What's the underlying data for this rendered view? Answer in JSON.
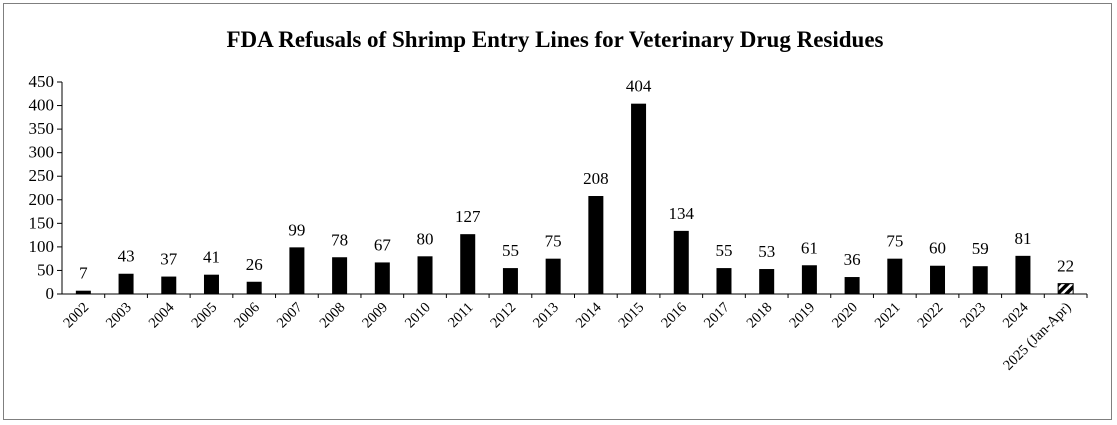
{
  "chart_data": {
    "type": "bar",
    "title": "FDA Refusals of Shrimp  Entry  Lines for Veterinary  Drug  Residues",
    "xlabel": "",
    "ylabel": "",
    "ylim": [
      0,
      450
    ],
    "yticks": [
      0,
      50,
      100,
      150,
      200,
      250,
      300,
      350,
      400,
      450
    ],
    "grid": false,
    "legend": "none",
    "bar_color": "#000000",
    "categories": [
      "2002",
      "2003",
      "2004",
      "2005",
      "2006",
      "2007",
      "2008",
      "2009",
      "2010",
      "2011",
      "2012",
      "2013",
      "2014",
      "2015",
      "2016",
      "2017",
      "2018",
      "2019",
      "2020",
      "2021",
      "2022",
      "2023",
      "2024",
      "2025 (Jan-Apr)"
    ],
    "values": [
      7,
      43,
      37,
      41,
      26,
      99,
      78,
      67,
      80,
      127,
      55,
      75,
      208,
      404,
      134,
      55,
      53,
      61,
      36,
      75,
      60,
      59,
      81,
      22
    ],
    "hatched_last": true
  }
}
